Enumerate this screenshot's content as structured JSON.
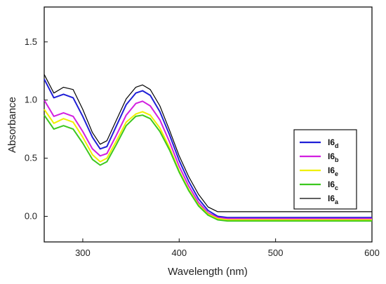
{
  "chart_data": {
    "type": "line",
    "xlabel": "Wavelength (nm)",
    "ylabel": "Absorbance",
    "xlim": [
      260,
      600
    ],
    "ylim": [
      -0.22,
      1.8
    ],
    "x_ticks": [
      300,
      400,
      500,
      600
    ],
    "y_ticks": [
      0.0,
      0.5,
      1.0,
      1.5
    ],
    "y_tick_labels": [
      "0.0",
      "0.5",
      "1.0",
      "1.5"
    ],
    "legend_position": "right",
    "series": [
      {
        "name": "I6",
        "subscript": "d",
        "color": "#1f1fd6",
        "points": [
          [
            260,
            1.18
          ],
          [
            270,
            1.02
          ],
          [
            280,
            1.05
          ],
          [
            290,
            1.02
          ],
          [
            300,
            0.86
          ],
          [
            310,
            0.68
          ],
          [
            318,
            0.58
          ],
          [
            325,
            0.6
          ],
          [
            335,
            0.78
          ],
          [
            345,
            0.96
          ],
          [
            355,
            1.06
          ],
          [
            362,
            1.08
          ],
          [
            370,
            1.04
          ],
          [
            380,
            0.9
          ],
          [
            390,
            0.7
          ],
          [
            400,
            0.48
          ],
          [
            410,
            0.3
          ],
          [
            420,
            0.15
          ],
          [
            430,
            0.05
          ],
          [
            440,
            0.0
          ],
          [
            450,
            -0.01
          ],
          [
            600,
            -0.01
          ]
        ]
      },
      {
        "name": "I6",
        "subscript": "b",
        "color": "#d21fe0",
        "points": [
          [
            260,
            1.0
          ],
          [
            270,
            0.86
          ],
          [
            280,
            0.89
          ],
          [
            290,
            0.86
          ],
          [
            300,
            0.73
          ],
          [
            310,
            0.58
          ],
          [
            318,
            0.52
          ],
          [
            325,
            0.54
          ],
          [
            335,
            0.7
          ],
          [
            345,
            0.87
          ],
          [
            355,
            0.97
          ],
          [
            362,
            0.99
          ],
          [
            370,
            0.95
          ],
          [
            380,
            0.83
          ],
          [
            390,
            0.64
          ],
          [
            400,
            0.43
          ],
          [
            410,
            0.26
          ],
          [
            420,
            0.12
          ],
          [
            430,
            0.03
          ],
          [
            440,
            -0.01
          ],
          [
            450,
            -0.02
          ],
          [
            600,
            -0.02
          ]
        ]
      },
      {
        "name": "I6",
        "subscript": "e",
        "color": "#f0f000",
        "points": [
          [
            260,
            0.92
          ],
          [
            270,
            0.8
          ],
          [
            280,
            0.84
          ],
          [
            290,
            0.81
          ],
          [
            300,
            0.68
          ],
          [
            310,
            0.53
          ],
          [
            318,
            0.47
          ],
          [
            325,
            0.5
          ],
          [
            335,
            0.65
          ],
          [
            345,
            0.81
          ],
          [
            355,
            0.88
          ],
          [
            362,
            0.9
          ],
          [
            370,
            0.87
          ],
          [
            380,
            0.76
          ],
          [
            390,
            0.59
          ],
          [
            400,
            0.39
          ],
          [
            410,
            0.23
          ],
          [
            420,
            0.1
          ],
          [
            430,
            0.02
          ],
          [
            440,
            -0.02
          ],
          [
            450,
            -0.03
          ],
          [
            600,
            -0.03
          ]
        ]
      },
      {
        "name": "I6",
        "subscript": "c",
        "color": "#3cc81e",
        "points": [
          [
            260,
            0.87
          ],
          [
            270,
            0.75
          ],
          [
            280,
            0.78
          ],
          [
            290,
            0.75
          ],
          [
            300,
            0.63
          ],
          [
            310,
            0.49
          ],
          [
            318,
            0.44
          ],
          [
            325,
            0.47
          ],
          [
            335,
            0.62
          ],
          [
            345,
            0.78
          ],
          [
            355,
            0.86
          ],
          [
            362,
            0.87
          ],
          [
            370,
            0.84
          ],
          [
            380,
            0.73
          ],
          [
            390,
            0.57
          ],
          [
            400,
            0.38
          ],
          [
            410,
            0.22
          ],
          [
            420,
            0.09
          ],
          [
            430,
            0.01
          ],
          [
            440,
            -0.03
          ],
          [
            450,
            -0.04
          ],
          [
            600,
            -0.04
          ]
        ]
      },
      {
        "name": "I6",
        "subscript": "a",
        "color": "#000000",
        "points": [
          [
            260,
            1.22
          ],
          [
            270,
            1.06
          ],
          [
            280,
            1.11
          ],
          [
            290,
            1.09
          ],
          [
            300,
            0.92
          ],
          [
            310,
            0.72
          ],
          [
            318,
            0.62
          ],
          [
            325,
            0.65
          ],
          [
            335,
            0.83
          ],
          [
            345,
            1.01
          ],
          [
            355,
            1.11
          ],
          [
            362,
            1.13
          ],
          [
            370,
            1.09
          ],
          [
            380,
            0.95
          ],
          [
            390,
            0.74
          ],
          [
            400,
            0.52
          ],
          [
            410,
            0.34
          ],
          [
            420,
            0.19
          ],
          [
            430,
            0.08
          ],
          [
            440,
            0.04
          ],
          [
            450,
            0.04
          ],
          [
            600,
            0.04
          ]
        ]
      }
    ]
  }
}
